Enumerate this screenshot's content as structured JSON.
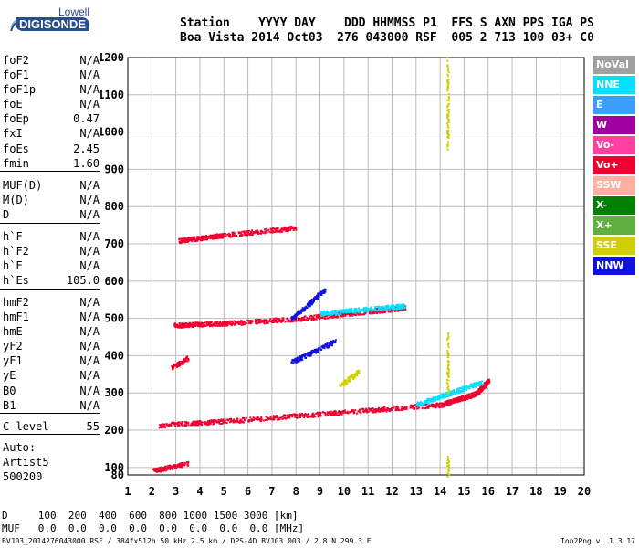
{
  "logo": {
    "top_text": "Lowell",
    "bottom_text": "DIGISONDE"
  },
  "header": {
    "line1": "Station    YYYY DAY    DDD HHMMSS P1  FFS S AXN PPS IGA PS",
    "line2": "Boa Vista 2014 Oct03  276 043000 RSF  005 2 713 100 03+ C0"
  },
  "params": {
    "group1": [
      [
        "foF2",
        "N/A"
      ],
      [
        "foF1",
        "N/A"
      ],
      [
        "foF1p",
        "N/A"
      ],
      [
        "foE",
        "N/A"
      ],
      [
        "foEp",
        "0.47"
      ],
      [
        "fxI",
        "N/A"
      ],
      [
        "foEs",
        "2.45"
      ],
      [
        "fmin",
        "1.60"
      ]
    ],
    "group2": [
      [
        "MUF(D)",
        "N/A"
      ],
      [
        "M(D)",
        "N/A"
      ],
      [
        "D",
        "N/A"
      ]
    ],
    "group3": [
      [
        "h`F",
        "N/A"
      ],
      [
        "h`F2",
        "N/A"
      ],
      [
        "h`E",
        "N/A"
      ],
      [
        "h`Es",
        "105.0"
      ]
    ],
    "group4": [
      [
        "hmF2",
        "N/A"
      ],
      [
        "hmF1",
        "N/A"
      ],
      [
        "hmE",
        "N/A"
      ],
      [
        "yF2",
        "N/A"
      ],
      [
        "yF1",
        "N/A"
      ],
      [
        "yE",
        "N/A"
      ],
      [
        "B0",
        "N/A"
      ],
      [
        "B1",
        "N/A"
      ]
    ],
    "group5": [
      [
        "C-level",
        "55"
      ]
    ],
    "auto": [
      "Auto:",
      "Artist5",
      "500200"
    ]
  },
  "legend": [
    {
      "label": "NoVal",
      "color": "#a0a0a0"
    },
    {
      "label": "NNE",
      "color": "#00e0ff"
    },
    {
      "label": "E",
      "color": "#3aa0ff"
    },
    {
      "label": "W",
      "color": "#a000a0"
    },
    {
      "label": "Vo-",
      "color": "#ff40a0"
    },
    {
      "label": "Vo+",
      "color": "#f00030"
    },
    {
      "label": "SSW",
      "color": "#ffb0a0"
    },
    {
      "label": "X-",
      "color": "#008000"
    },
    {
      "label": "X+",
      "color": "#60b040"
    },
    {
      "label": "SSE",
      "color": "#d0d000"
    },
    {
      "label": "NNW",
      "color": "#1010e0"
    }
  ],
  "bottom": {
    "line1": "D     100  200  400  600  800 1000 1500 3000 [km]",
    "line2": "MUF   0.0  0.0  0.0  0.0  0.0  0.0  0.0  0.0 [MHz]"
  },
  "footer": {
    "left": "BVJ03_2014276043000.RSF / 384fx512h 50 kHz 2.5 km / DPS-4D BVJ03 003 / 2.8 N 299.3 E",
    "right": "Ion2Png v. 1.3.17"
  },
  "chart_data": {
    "type": "scatter",
    "xlabel": "",
    "ylabel": "",
    "xlim": [
      1,
      20
    ],
    "ylim": [
      80,
      1200
    ],
    "xticks": [
      1,
      2,
      3,
      4,
      5,
      6,
      7,
      8,
      9,
      10,
      11,
      12,
      13,
      14,
      15,
      16,
      17,
      18,
      19,
      20
    ],
    "yticks": [
      80,
      100,
      200,
      300,
      400,
      500,
      600,
      700,
      800,
      900,
      1000,
      1100,
      1200
    ],
    "grid": true,
    "legend_position": "right",
    "series": [
      {
        "name": "Vo+",
        "color": "#f00030",
        "traces": [
          {
            "x": [
              2.3,
              6,
              10,
              14,
              15.5,
              16
            ],
            "y": [
              215,
              230,
              250,
              270,
              300,
              335
            ]
          },
          {
            "x": [
              2.9,
              5,
              8,
              11,
              12.5
            ],
            "y": [
              483,
              488,
              500,
              520,
              530
            ]
          },
          {
            "x": [
              3.1,
              5,
              8
            ],
            "y": [
              710,
              725,
              745
            ]
          },
          {
            "x": [
              2.8,
              3.5
            ],
            "y": [
              370,
              395
            ]
          },
          {
            "x": [
              2,
              3.5
            ],
            "y": [
              93,
              112
            ]
          }
        ]
      },
      {
        "name": "NNE",
        "color": "#00e0ff",
        "traces": [
          {
            "x": [
              13,
              15.7
            ],
            "y": [
              270,
              330
            ]
          },
          {
            "x": [
              9,
              12.5
            ],
            "y": [
              515,
              535
            ]
          }
        ]
      },
      {
        "name": "NNW",
        "color": "#1010e0",
        "traces": [
          {
            "x": [
              7.8,
              9.2
            ],
            "y": [
              500,
              580
            ]
          },
          {
            "x": [
              7.8,
              9.6
            ],
            "y": [
              385,
              440
            ]
          }
        ]
      },
      {
        "name": "SSE",
        "color": "#d0d000",
        "traces": [
          {
            "x": [
              14.3,
              14.3
            ],
            "y": [
              960,
              1200
            ]
          },
          {
            "x": [
              14.3,
              14.3
            ],
            "y": [
              300,
              470
            ]
          },
          {
            "x": [
              14.3,
              14.3
            ],
            "y": [
              80,
              130
            ]
          },
          {
            "x": [
              9.8,
              10.6
            ],
            "y": [
              320,
              360
            ]
          }
        ]
      }
    ]
  }
}
